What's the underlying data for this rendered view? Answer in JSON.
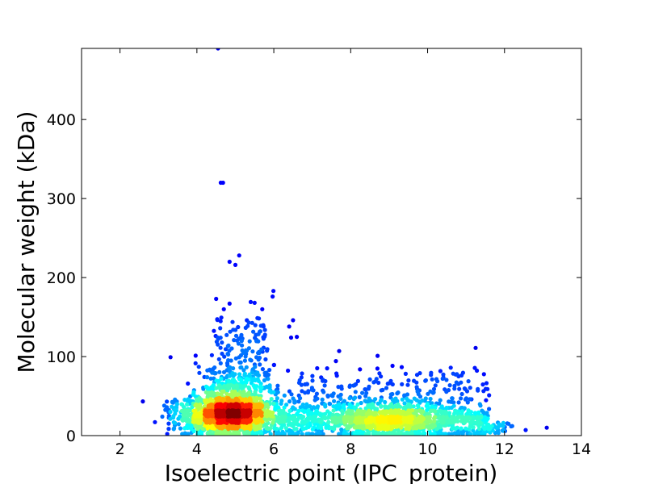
{
  "chart_data": {
    "type": "scatter",
    "title": "",
    "xlabel": "Isoelectric point (IPC_protein)",
    "ylabel": "Molecular weight (kDa)",
    "xlim": [
      1,
      14
    ],
    "ylim": [
      0,
      490
    ],
    "xticks": [
      2,
      4,
      6,
      8,
      10,
      12,
      14
    ],
    "yticks": [
      0,
      100,
      200,
      300,
      400
    ],
    "grid": false,
    "legend": "none",
    "colormap": "jet (point density)",
    "colors": {
      "low_density": "#00008b",
      "mid_density": "#00bfff",
      "high_density": "#ff0000",
      "axes": "#000000",
      "background": "#ffffff"
    },
    "density_center": {
      "x": 4.9,
      "y": 25
    },
    "outliers": [
      {
        "x": 4.55,
        "y": 490
      },
      {
        "x": 4.62,
        "y": 320
      },
      {
        "x": 4.68,
        "y": 320
      },
      {
        "x": 4.85,
        "y": 220
      },
      {
        "x": 5.0,
        "y": 216
      },
      {
        "x": 5.1,
        "y": 228
      },
      {
        "x": 5.99,
        "y": 183
      },
      {
        "x": 5.97,
        "y": 176
      },
      {
        "x": 4.5,
        "y": 173
      },
      {
        "x": 4.85,
        "y": 167
      },
      {
        "x": 5.4,
        "y": 169
      },
      {
        "x": 5.5,
        "y": 168
      },
      {
        "x": 4.7,
        "y": 160
      },
      {
        "x": 5.7,
        "y": 160
      },
      {
        "x": 6.5,
        "y": 146
      },
      {
        "x": 5.3,
        "y": 146
      },
      {
        "x": 5.35,
        "y": 143
      },
      {
        "x": 6.4,
        "y": 138
      },
      {
        "x": 5.7,
        "y": 139
      },
      {
        "x": 5.65,
        "y": 132
      },
      {
        "x": 6.6,
        "y": 125
      },
      {
        "x": 6.45,
        "y": 124
      },
      {
        "x": 7.7,
        "y": 107
      },
      {
        "x": 8.7,
        "y": 101
      },
      {
        "x": 9.8,
        "y": 79
      },
      {
        "x": 10.7,
        "y": 63
      },
      {
        "x": 11.6,
        "y": 51
      },
      {
        "x": 12.55,
        "y": 7
      },
      {
        "x": 13.1,
        "y": 10
      },
      {
        "x": 12.2,
        "y": 12
      },
      {
        "x": 3.15,
        "y": 38
      },
      {
        "x": 3.1,
        "y": 24
      }
    ]
  }
}
